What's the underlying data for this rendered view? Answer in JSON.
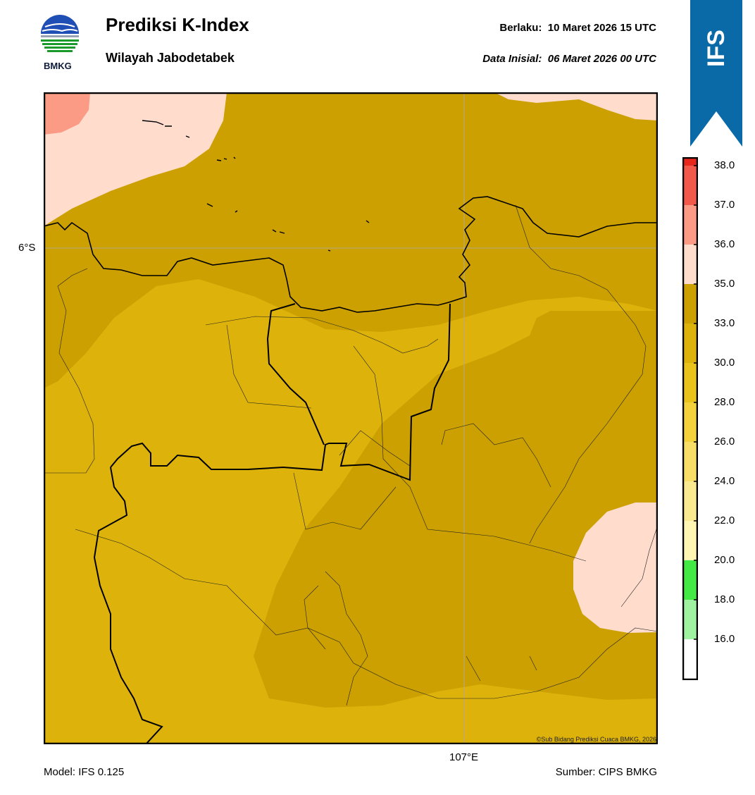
{
  "header": {
    "logo_text": "BMKG",
    "title": "Prediksi K-Index",
    "subtitle": "Wilayah Jabodetabek",
    "valid_label": "Berlaku:",
    "valid_time": "10 Maret 2026 15 UTC",
    "init_label": "Data Inisial:",
    "init_time": "06 Maret 2026 00 UTC",
    "model_tag": "IFS"
  },
  "map": {
    "lat_label": "6°S",
    "lon_label": "107°E",
    "copyright": "©Sub Bidang Prediksi Cuaca BMKG, 2026",
    "colors": {
      "band_30_33": "#cba000",
      "band_28_30": "#dcb20b",
      "band_35_36": "#ffdccc",
      "band_36_37": "#fb9a85",
      "boundary": "#000000"
    }
  },
  "colorbar": {
    "ticks": [
      "38.0",
      "37.0",
      "36.0",
      "35.0",
      "33.0",
      "30.0",
      "28.0",
      "26.0",
      "24.0",
      "22.0",
      "20.0",
      "18.0",
      "16.0"
    ],
    "colors": [
      "#e8271d",
      "#f2594a",
      "#fb9a85",
      "#ffdccc",
      "#cba000",
      "#dcb20b",
      "#e9c31c",
      "#f3d23c",
      "#f8de66",
      "#fbe98f",
      "#fff6b3",
      "#44ea44",
      "#9ff29f",
      "#ffffff"
    ]
  },
  "footer": {
    "model": "Model: IFS 0.125",
    "source": "Sumber: CIPS BMKG"
  }
}
